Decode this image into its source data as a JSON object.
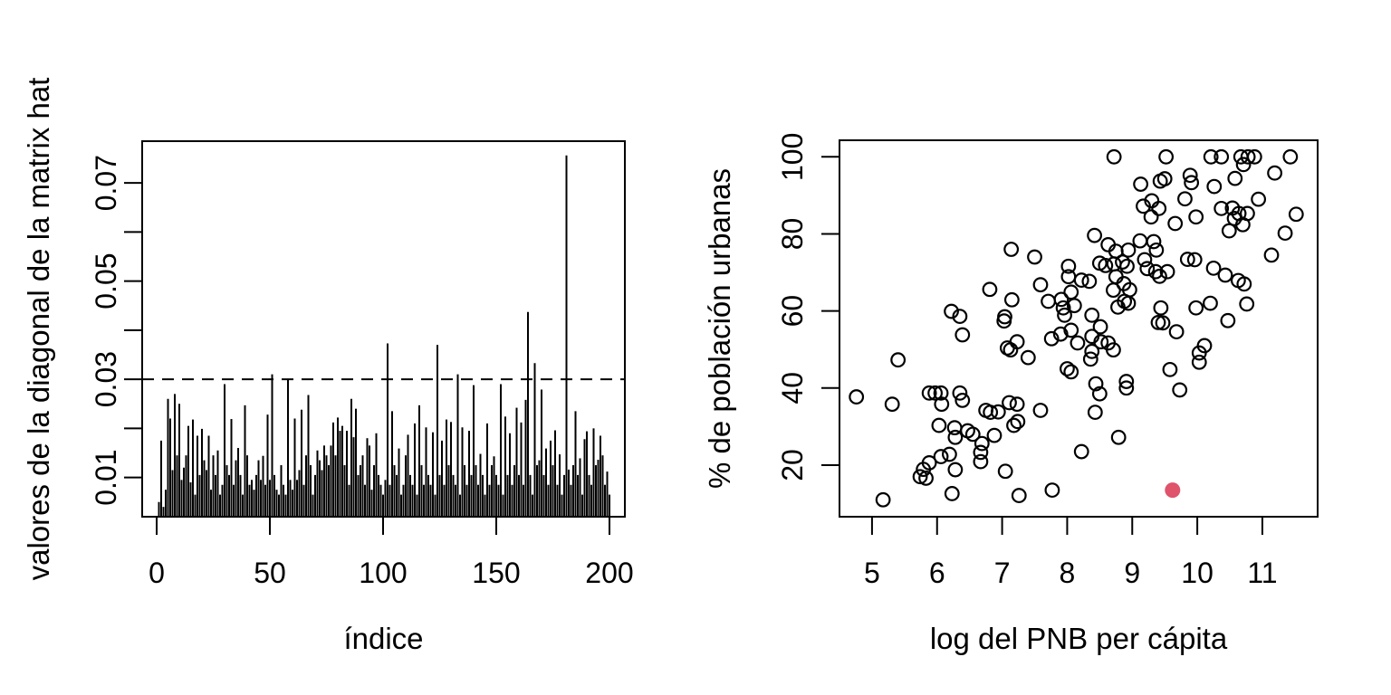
{
  "figure": {
    "background": "#FFFFFF",
    "stroke_color": "#000000",
    "highlight_color": "#DF536B"
  },
  "chart_data": [
    {
      "type": "bar",
      "subtype": "spike-plot-type-h",
      "title": "",
      "xlabel": "índice",
      "ylabel": "valores de la diagonal de la matrix hat",
      "xlim": [
        -6.4,
        206.8
      ],
      "ylim": [
        0.002,
        0.0785
      ],
      "x_ticks": [
        0,
        50,
        100,
        150,
        200
      ],
      "x_tick_labels": [
        "0",
        "50",
        "100",
        "150",
        "200"
      ],
      "y_ticks": [
        0.01,
        0.02,
        0.03,
        0.04,
        0.05,
        0.06,
        0.07
      ],
      "y_tick_labels": [
        "0.01",
        "",
        "0.03",
        "",
        "0.05",
        "",
        "0.07"
      ],
      "grid": false,
      "threshold_line": {
        "y": 0.03,
        "style": "dashed",
        "color": "#000000"
      },
      "x_start": 1,
      "values": [
        0.005,
        0.0175,
        0.004,
        0.0075,
        0.026,
        0.022,
        0.0115,
        0.027,
        0.0145,
        0.025,
        0.0095,
        0.012,
        0.0145,
        0.0205,
        0.009,
        0.0218,
        0.0065,
        0.0185,
        0.0105,
        0.0199,
        0.0135,
        0.0115,
        0.0185,
        0.0075,
        0.0145,
        0.0105,
        0.0155,
        0.0065,
        0.0085,
        0.029,
        0.0125,
        0.0105,
        0.0219,
        0.0085,
        0.0135,
        0.016,
        0.0105,
        0.0065,
        0.0247,
        0.0145,
        0.0085,
        0.0095,
        0.0075,
        0.0105,
        0.0135,
        0.0095,
        0.0144,
        0.0085,
        0.0228,
        0.0095,
        0.031,
        0.0105,
        0.0075,
        0.0065,
        0.0125,
        0.0085,
        0.0065,
        0.0301,
        0.0095,
        0.0075,
        0.022,
        0.0095,
        0.0115,
        0.0238,
        0.0085,
        0.0145,
        0.0268,
        0.0125,
        0.0065,
        0.0105,
        0.0155,
        0.0135,
        0.0115,
        0.0165,
        0.0145,
        0.0125,
        0.0165,
        0.0212,
        0.0145,
        0.0222,
        0.0195,
        0.0205,
        0.0125,
        0.0195,
        0.0085,
        0.026,
        0.0182,
        0.024,
        0.0105,
        0.0125,
        0.0145,
        0.0085,
        0.018,
        0.0165,
        0.0075,
        0.0125,
        0.019,
        0.0105,
        0.0085,
        0.0065,
        0.0095,
        0.0373,
        0.0085,
        0.0235,
        0.0125,
        0.0105,
        0.0159,
        0.0065,
        0.0085,
        0.0145,
        0.0187,
        0.0105,
        0.0085,
        0.021,
        0.0065,
        0.0247,
        0.0125,
        0.0085,
        0.0202,
        0.0105,
        0.0085,
        0.0192,
        0.0065,
        0.037,
        0.0105,
        0.0175,
        0.0085,
        0.0218,
        0.0125,
        0.0213,
        0.0105,
        0.0085,
        0.031,
        0.0065,
        0.0202,
        0.0125,
        0.0085,
        0.0195,
        0.0105,
        0.0288,
        0.0125,
        0.0085,
        0.0148,
        0.0105,
        0.0065,
        0.021,
        0.0085,
        0.0125,
        0.0143,
        0.0105,
        0.0085,
        0.029,
        0.0065,
        0.0224,
        0.0105,
        0.019,
        0.0085,
        0.0125,
        0.0242,
        0.0105,
        0.0212,
        0.0085,
        0.0258,
        0.0437,
        0.0105,
        0.0065,
        0.0333,
        0.0125,
        0.0135,
        0.0279,
        0.0105,
        0.0159,
        0.0085,
        0.0175,
        0.0125,
        0.0196,
        0.0085,
        0.0147,
        0.0065,
        0.0105,
        0.0756,
        0.0116,
        0.0085,
        0.0125,
        0.0235,
        0.0105,
        0.0139,
        0.0065,
        0.0178,
        0.0194,
        0.0105,
        0.0085,
        0.02,
        0.0125,
        0.0136,
        0.0185,
        0.0145,
        0.0085,
        0.0112,
        0.0065
      ]
    },
    {
      "type": "scatter",
      "title": "",
      "xlabel": "log del PNB per cápita",
      "ylabel": "% de población urbanas",
      "xlim": [
        4.5,
        11.85
      ],
      "ylim": [
        6.6,
        104.3
      ],
      "x_ticks": [
        5,
        6,
        7,
        8,
        9,
        10,
        11
      ],
      "x_tick_labels": [
        "5",
        "6",
        "7",
        "8",
        "9",
        "10",
        "11"
      ],
      "y_ticks": [
        20,
        40,
        60,
        80,
        100
      ],
      "y_tick_labels": [
        "20",
        "40",
        "60",
        "80",
        "100"
      ],
      "grid": false,
      "marker": "open-circle",
      "points": [
        [
          7.14,
          76
        ],
        [
          7.5,
          74
        ],
        [
          8.02,
          71.6
        ],
        [
          8.02,
          68.9
        ],
        [
          6.81,
          65.6
        ],
        [
          7.59,
          66.8
        ],
        [
          7.15,
          62.9
        ],
        [
          7.71,
          62.5
        ],
        [
          7.91,
          63
        ],
        [
          8.06,
          64.9
        ],
        [
          8.11,
          61.4
        ],
        [
          7.94,
          60.8
        ],
        [
          7.96,
          58.9
        ],
        [
          6.22,
          59.9
        ],
        [
          6.35,
          58.6
        ],
        [
          7.04,
          58.5
        ],
        [
          7.03,
          57.4
        ],
        [
          8.22,
          68
        ],
        [
          8.34,
          67.7
        ],
        [
          8.72,
          100
        ],
        [
          9.52,
          100
        ],
        [
          10.21,
          100
        ],
        [
          10.37,
          100
        ],
        [
          10.67,
          100
        ],
        [
          10.78,
          100
        ],
        [
          10.88,
          100
        ],
        [
          11.43,
          100
        ],
        [
          10.71,
          98
        ],
        [
          11.19,
          95.8
        ],
        [
          10.58,
          94.4
        ],
        [
          9.89,
          95.2
        ],
        [
          9.91,
          93.3
        ],
        [
          9.13,
          92.9
        ],
        [
          9.43,
          93.7
        ],
        [
          9.5,
          94.3
        ],
        [
          10.26,
          92.3
        ],
        [
          9.81,
          89.1
        ],
        [
          10.94,
          89
        ],
        [
          9.3,
          88.6
        ],
        [
          9.17,
          87.2
        ],
        [
          9.41,
          86.6
        ],
        [
          9.29,
          84.4
        ],
        [
          10.37,
          86.6
        ],
        [
          10.54,
          86.7
        ],
        [
          10.64,
          85.3
        ],
        [
          10.77,
          85.3
        ],
        [
          10.57,
          84
        ],
        [
          10.7,
          82.4
        ],
        [
          11.52,
          85.1
        ],
        [
          11.35,
          80.2
        ],
        [
          9.98,
          84.4
        ],
        [
          9.66,
          82.7
        ],
        [
          10.49,
          80.8
        ],
        [
          8.42,
          79.6
        ],
        [
          8.63,
          77.2
        ],
        [
          9.12,
          78.2
        ],
        [
          9.33,
          78
        ],
        [
          9.37,
          75.8
        ],
        [
          8.94,
          75.8
        ],
        [
          8.75,
          75.5
        ],
        [
          8.5,
          72.4
        ],
        [
          8.59,
          71.8
        ],
        [
          8.72,
          72.2
        ],
        [
          8.85,
          72.7
        ],
        [
          8.92,
          71.6
        ],
        [
          8.75,
          68.9
        ],
        [
          8.87,
          67.1
        ],
        [
          8.96,
          65.5
        ],
        [
          8.71,
          65.4
        ],
        [
          9.19,
          73.3
        ],
        [
          9.23,
          71
        ],
        [
          9.36,
          70.2
        ],
        [
          9.42,
          69
        ],
        [
          9.54,
          70.2
        ],
        [
          9.85,
          73.4
        ],
        [
          9.96,
          73.3
        ],
        [
          10.25,
          71.1
        ],
        [
          10.43,
          69.3
        ],
        [
          10.63,
          67.9
        ],
        [
          10.72,
          67
        ],
        [
          11.14,
          74.5
        ],
        [
          8.88,
          62.5
        ],
        [
          8.94,
          62
        ],
        [
          8.78,
          61
        ],
        [
          8.38,
          58.9
        ],
        [
          9.44,
          60.8
        ],
        [
          9.98,
          60.8
        ],
        [
          10.2,
          62
        ],
        [
          10.76,
          61.8
        ],
        [
          10.47,
          57.5
        ],
        [
          9.4,
          57
        ],
        [
          6.39,
          53.8
        ],
        [
          7.08,
          50.4
        ],
        [
          7.13,
          49.9
        ],
        [
          5.4,
          47.3
        ],
        [
          7.23,
          52
        ],
        [
          7.4,
          47.9
        ],
        [
          7.9,
          54
        ],
        [
          8.06,
          55
        ],
        [
          8.16,
          51.7
        ],
        [
          7.76,
          52.8
        ],
        [
          8,
          45
        ],
        [
          8.06,
          44.2
        ],
        [
          4.76,
          37.7
        ],
        [
          5.31,
          35.8
        ],
        [
          5.88,
          38.7
        ],
        [
          5.97,
          38.7
        ],
        [
          6.06,
          38.7
        ],
        [
          6.07,
          35.8
        ],
        [
          6.35,
          38.7
        ],
        [
          6.39,
          36.8
        ],
        [
          6.75,
          34.2
        ],
        [
          6.82,
          33.7
        ],
        [
          6.94,
          33.8
        ],
        [
          7.11,
          36.2
        ],
        [
          7.23,
          35.8
        ],
        [
          7.24,
          31.3
        ],
        [
          7.18,
          30.3
        ],
        [
          7.59,
          34.2
        ],
        [
          6.03,
          30.3
        ],
        [
          6.27,
          29.7
        ],
        [
          6.28,
          27.2
        ],
        [
          6.47,
          28.9
        ],
        [
          6.55,
          28
        ],
        [
          6.69,
          25.6
        ],
        [
          6.88,
          27.7
        ],
        [
          6.67,
          23.3
        ],
        [
          6.67,
          20.9
        ],
        [
          6.06,
          22.2
        ],
        [
          6.19,
          22.8
        ],
        [
          5.88,
          20.6
        ],
        [
          5.79,
          18.9
        ],
        [
          5.83,
          16.6
        ],
        [
          5.74,
          17
        ],
        [
          6.28,
          18.8
        ],
        [
          7.05,
          18.4
        ],
        [
          6.23,
          12.6
        ],
        [
          5.17,
          11
        ],
        [
          7.26,
          12.1
        ],
        [
          7.77,
          13.5
        ],
        [
          8.51,
          55.9
        ],
        [
          9.47,
          56.9
        ],
        [
          9.68,
          54.6
        ],
        [
          10.11,
          51
        ],
        [
          10.03,
          49.1
        ],
        [
          10.03,
          46.7
        ],
        [
          9.58,
          44.8
        ],
        [
          9.73,
          39.5
        ],
        [
          8.91,
          41.7
        ],
        [
          8.91,
          40
        ],
        [
          8.44,
          41.1
        ],
        [
          8.5,
          38.5
        ],
        [
          8.43,
          33.7
        ],
        [
          8.79,
          27.2
        ],
        [
          8.22,
          23.5
        ],
        [
          8.38,
          53.4
        ],
        [
          8.52,
          52
        ],
        [
          8.63,
          51.7
        ],
        [
          8.71,
          49.9
        ],
        [
          8.38,
          49.5
        ],
        [
          8.36,
          47.5
        ]
      ],
      "highlight_point": {
        "x": 9.62,
        "y": 13.5,
        "color": "#DF536B",
        "marker": "filled-circle"
      }
    }
  ]
}
